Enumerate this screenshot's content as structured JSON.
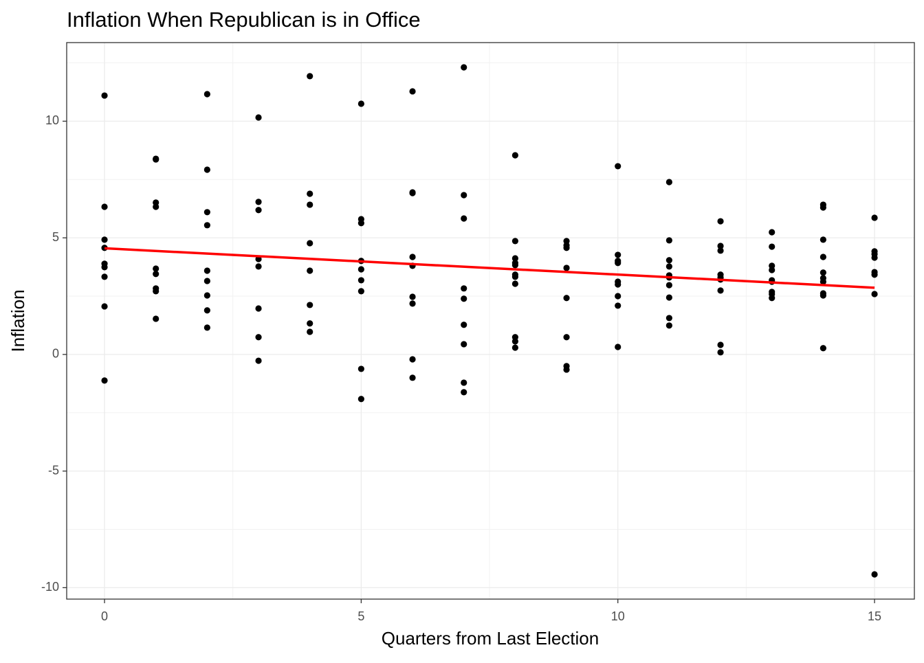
{
  "chart_data": {
    "type": "scatter",
    "title": "Inflation When Republican is in Office",
    "xlabel": "Quarters from Last Election",
    "ylabel": "Inflation",
    "xlim": [
      -0.737,
      15.776
    ],
    "ylim": [
      -10.49,
      13.37
    ],
    "xticks": [
      0,
      5,
      10,
      15
    ],
    "yticks": [
      -10,
      -5,
      0,
      5,
      10
    ],
    "grid": true,
    "color": "#000000",
    "x": [
      0,
      0,
      0,
      0,
      0,
      0,
      0,
      0,
      0,
      1,
      1,
      1,
      1,
      1,
      1,
      1,
      1,
      1,
      2,
      2,
      2,
      2,
      2,
      2,
      2,
      2,
      2,
      3,
      3,
      3,
      3,
      3,
      3,
      3,
      3,
      4,
      4,
      4,
      4,
      4,
      4,
      4,
      4,
      5,
      5,
      5,
      5,
      5,
      5,
      5,
      5,
      5,
      6,
      6,
      6,
      6,
      6,
      6,
      6,
      6,
      6,
      7,
      7,
      7,
      7,
      7,
      7,
      7,
      7,
      7,
      8,
      8,
      8,
      8,
      8,
      8,
      8,
      8,
      8,
      8,
      8,
      9,
      9,
      9,
      9,
      9,
      9,
      9,
      9,
      10,
      10,
      10,
      10,
      10,
      10,
      10,
      10,
      10,
      11,
      11,
      11,
      11,
      11,
      11,
      11,
      11,
      11,
      11,
      12,
      12,
      12,
      12,
      12,
      12,
      12,
      12,
      12,
      13,
      13,
      13,
      13,
      13,
      13,
      13,
      13,
      13,
      14,
      14,
      14,
      14,
      14,
      14,
      14,
      14,
      14,
      14,
      15,
      15,
      15,
      15,
      15,
      15,
      15,
      15
    ],
    "y": [
      11.1,
      6.33,
      4.92,
      4.57,
      3.89,
      3.74,
      3.33,
      2.06,
      -1.12,
      8.39,
      8.36,
      6.51,
      6.33,
      3.68,
      3.45,
      2.83,
      2.71,
      1.53,
      11.16,
      7.92,
      6.1,
      5.54,
      3.59,
      3.15,
      2.53,
      1.89,
      1.15,
      10.16,
      6.54,
      6.19,
      4.09,
      3.77,
      1.97,
      0.74,
      -0.27,
      11.93,
      6.89,
      6.42,
      4.77,
      3.59,
      2.12,
      1.33,
      0.97,
      10.75,
      5.8,
      5.63,
      4.01,
      3.65,
      3.18,
      2.71,
      -0.62,
      -1.91,
      11.28,
      6.95,
      6.92,
      4.18,
      3.8,
      2.47,
      2.18,
      -0.21,
      -1.0,
      12.31,
      6.83,
      5.83,
      2.83,
      2.39,
      1.27,
      0.44,
      -1.21,
      -1.62,
      8.54,
      4.86,
      4.12,
      3.92,
      3.83,
      3.42,
      3.33,
      3.03,
      0.74,
      0.56,
      0.29,
      4.86,
      4.68,
      4.57,
      3.71,
      2.42,
      0.74,
      -0.5,
      -0.65,
      8.07,
      4.27,
      4.01,
      3.92,
      3.12,
      3.0,
      2.5,
      2.09,
      0.32,
      7.39,
      4.89,
      4.04,
      3.77,
      3.39,
      3.3,
      2.97,
      2.44,
      1.56,
      1.24,
      5.71,
      4.65,
      4.45,
      3.42,
      3.3,
      3.21,
      2.74,
      0.41,
      0.09,
      5.24,
      4.62,
      3.8,
      3.62,
      3.18,
      3.12,
      2.68,
      2.59,
      2.42,
      6.42,
      6.3,
      4.92,
      4.18,
      3.51,
      3.27,
      3.12,
      2.62,
      2.53,
      0.27,
      5.86,
      4.42,
      4.3,
      4.15,
      3.53,
      3.42,
      2.59,
      -9.43
    ],
    "fit": {
      "type": "line",
      "color": "#ff0000",
      "x": [
        0,
        15
      ],
      "y": [
        4.55,
        2.86
      ]
    }
  }
}
